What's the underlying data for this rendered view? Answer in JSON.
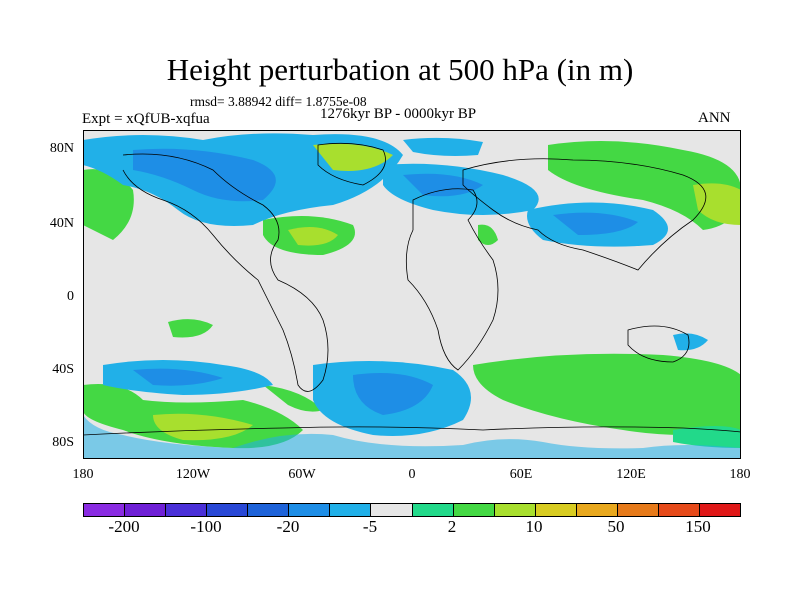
{
  "title": "Height perturbation at 500 hPa (in m)",
  "stats": "rmsd= 3.88942 diff= 1.8755e-08",
  "left_label": "Expt = xQfUB-xqfua",
  "center_label": "1276kyr BP - 0000kyr BP",
  "right_label": "ANN",
  "lat_labels": [
    "80N",
    "40N",
    "0",
    "40S",
    "80S"
  ],
  "lon_labels": [
    "180",
    "120W",
    "60W",
    "0",
    "60E",
    "120E",
    "180"
  ],
  "colorbar": {
    "colors": [
      "#8a2be2",
      "#6f20d6",
      "#4a30d8",
      "#2948d6",
      "#1e63d9",
      "#1e8ee6",
      "#21b0e8",
      "#e6e6e6",
      "#22d98a",
      "#44d844",
      "#a8df2e",
      "#d8cc22",
      "#e8a81e",
      "#e67a1a",
      "#e64a1a",
      "#e01818"
    ],
    "labels": [
      "-200",
      "-100",
      "-20",
      "-5",
      "2",
      "10",
      "50",
      "150"
    ]
  }
}
